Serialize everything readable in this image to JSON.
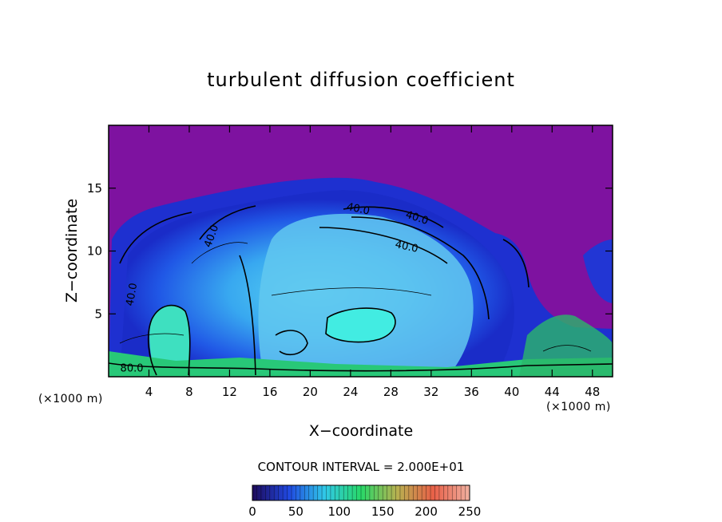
{
  "chart_data": {
    "type": "heatmap",
    "title": "turbulent diffusion coefficient",
    "xlabel": "X−coordinate",
    "ylabel": "Z−coordinate",
    "x_unit_left": "(×1000 m)",
    "x_unit_right": "(×1000 m)",
    "xlim": [
      0,
      50
    ],
    "ylim": [
      0,
      20
    ],
    "x_ticks": [
      4,
      8,
      12,
      16,
      20,
      24,
      28,
      32,
      36,
      40,
      44,
      48
    ],
    "y_ticks": [
      5,
      10,
      15
    ],
    "contour_labels": [
      {
        "text": "40.0",
        "x": 24.7,
        "y": 13.1
      },
      {
        "text": "40.0",
        "x": 30.5,
        "y": 12.4
      },
      {
        "text": "40.0",
        "x": 29.5,
        "y": 10.1
      },
      {
        "text": "40.0",
        "x": 10.5,
        "y": 11.1
      },
      {
        "text": "40.0",
        "x": 2.6,
        "y": 6.5
      },
      {
        "text": "80.0",
        "x": 2.3,
        "y": 0.4
      }
    ],
    "contour_interval_text": "CONTOUR INTERVAL = 2.000E+01",
    "colorbar": {
      "min": 0,
      "max": 250,
      "tick_labels": [
        "0",
        "50",
        "100",
        "150",
        "200",
        "250"
      ],
      "stops": [
        "#1e0a5a",
        "#2048e0",
        "#30c8e8",
        "#28d868",
        "#b8b050",
        "#e86048",
        "#f0b0a0"
      ]
    },
    "colors": {
      "background_field": "#7e12a0"
    }
  }
}
